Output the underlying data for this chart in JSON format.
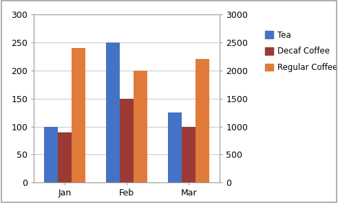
{
  "categories": [
    "Jan",
    "Feb",
    "Mar"
  ],
  "tea": [
    100,
    250,
    125
  ],
  "decaf": [
    90,
    150,
    100
  ],
  "regular": [
    2400,
    2000,
    2200
  ],
  "tea_color": "#4472C4",
  "decaf_color": "#9B3A35",
  "regular_color": "#E07B39",
  "primary_ylim": [
    0,
    300
  ],
  "secondary_ylim": [
    0,
    3000
  ],
  "primary_yticks": [
    0,
    50,
    100,
    150,
    200,
    250,
    300
  ],
  "secondary_yticks": [
    0,
    500,
    1000,
    1500,
    2000,
    2500,
    3000
  ],
  "legend_labels": [
    "Tea",
    "Decaf Coffee",
    "Regular Coffee"
  ],
  "background_color": "#ffffff",
  "grid_color": "#c8c8c8",
  "border_color": "#a0a0a0"
}
